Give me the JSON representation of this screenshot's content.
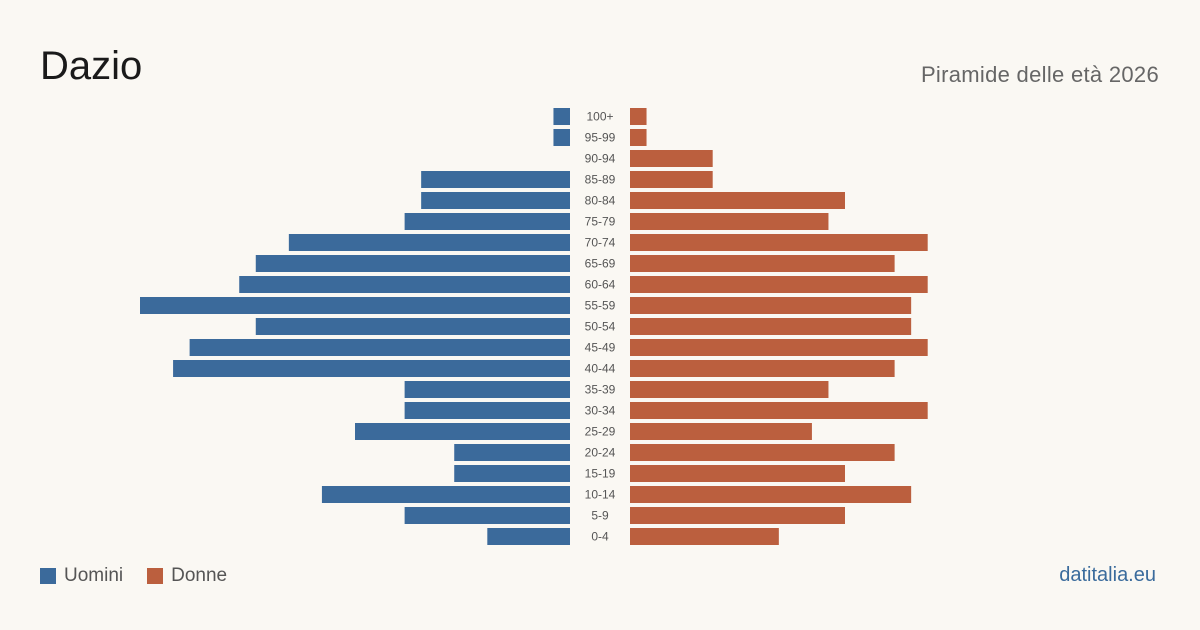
{
  "header": {
    "title": "Dazio",
    "subtitle": "Piramide delle età 2026"
  },
  "legend": {
    "men_label": "Uomini",
    "women_label": "Donne"
  },
  "brand": "datitalia.eu",
  "colors": {
    "men": "#3b6a9b",
    "women": "#bb5f3e",
    "background": "#faf8f3"
  },
  "chart_data": {
    "type": "bar",
    "orientation": "horizontal-pyramid",
    "categories": [
      "100+",
      "95-99",
      "90-94",
      "85-89",
      "80-84",
      "75-79",
      "70-74",
      "65-69",
      "60-64",
      "55-59",
      "50-54",
      "45-49",
      "40-44",
      "35-39",
      "30-34",
      "25-29",
      "20-24",
      "15-19",
      "10-14",
      "5-9",
      "0-4"
    ],
    "series": [
      {
        "name": "Uomini",
        "values": [
          1,
          1,
          0,
          9,
          9,
          10,
          17,
          19,
          20,
          26,
          19,
          23,
          24,
          10,
          10,
          13,
          7,
          7,
          15,
          10,
          5
        ]
      },
      {
        "name": "Donne",
        "values": [
          1,
          1,
          5,
          5,
          13,
          12,
          18,
          16,
          18,
          17,
          17,
          18,
          16,
          12,
          18,
          11,
          16,
          13,
          17,
          13,
          9
        ]
      }
    ],
    "grid": false,
    "legend_position": "bottom-left"
  }
}
